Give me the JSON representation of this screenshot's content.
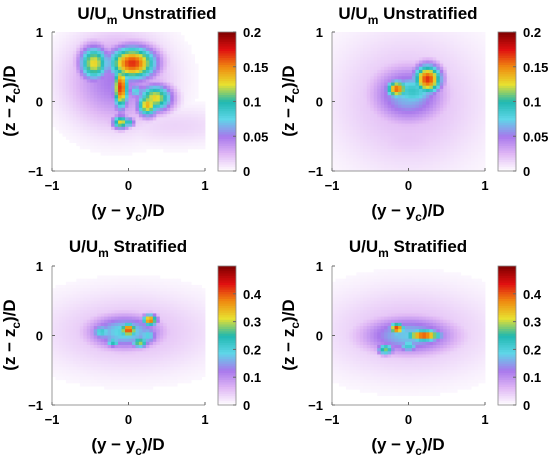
{
  "chart_data": [
    {
      "type": "heatmap",
      "title": "U/U_m Unstratified",
      "title_main": "U/U",
      "title_sub": "m",
      "title_rest": " Unstratified",
      "xlabel_parts": [
        "(y − y",
        "c",
        ")/D"
      ],
      "ylabel_parts": [
        "(z − z",
        "c",
        ")/D"
      ],
      "xlim": [
        -1,
        1
      ],
      "ylim": [
        -1,
        1
      ],
      "xticks": [
        "−1",
        "0",
        "1"
      ],
      "yticks": [
        "−1",
        "0",
        "1"
      ],
      "clim": [
        0,
        0.2
      ],
      "colorbar_ticks": [
        "0",
        "0.05",
        "0.1",
        "0.15",
        "0.2"
      ],
      "colorbar_values": [
        0,
        0.05,
        0.1,
        0.15,
        0.2
      ],
      "colormap": [
        "#ffffff",
        "#e0b8f5",
        "#a878ec",
        "#5fd6e8",
        "#20b8b0",
        "#e8e030",
        "#f08a10",
        "#e01010",
        "#800000"
      ],
      "blobs": [
        {
          "y": -0.15,
          "z": 0.3,
          "sy": 0.45,
          "sz": 0.45,
          "v": 0.05
        },
        {
          "y": 0.05,
          "z": 0.55,
          "sy": 0.22,
          "sz": 0.17,
          "v": 0.17
        },
        {
          "y": -0.1,
          "z": 0.2,
          "sy": 0.07,
          "sz": 0.22,
          "v": 0.17
        },
        {
          "y": -0.45,
          "z": 0.55,
          "sy": 0.14,
          "sz": 0.18,
          "v": 0.13
        },
        {
          "y": 0.35,
          "z": 0.05,
          "sy": 0.16,
          "sz": 0.14,
          "v": 0.13
        },
        {
          "y": 0.1,
          "z": 0.15,
          "sy": 0.08,
          "sz": 0.08,
          "v": 0.08
        },
        {
          "y": 0.25,
          "z": -0.05,
          "sy": 0.1,
          "sz": 0.12,
          "v": 0.14
        },
        {
          "y": -0.1,
          "z": -0.3,
          "sy": 0.08,
          "sz": 0.07,
          "v": 0.13
        },
        {
          "y": 0.0,
          "z": -0.3,
          "sy": 0.06,
          "sz": 0.05,
          "v": 0.1
        },
        {
          "y": 0.6,
          "z": -0.35,
          "sy": 0.6,
          "sz": 0.2,
          "v": 0.015
        }
      ]
    },
    {
      "type": "heatmap",
      "title": "U/U_m Unstratified",
      "title_main": "U/U",
      "title_sub": "m",
      "title_rest": " Unstratified",
      "xlabel_parts": [
        "(y − y",
        "c",
        ")/D"
      ],
      "ylabel_parts": [
        "(z − z",
        "c",
        ")/D"
      ],
      "xlim": [
        -1,
        1
      ],
      "ylim": [
        -1,
        1
      ],
      "xticks": [
        "−1",
        "0",
        "1"
      ],
      "yticks": [
        "−1",
        "0",
        "1"
      ],
      "clim": [
        0,
        0.2
      ],
      "colorbar_ticks": [
        "0",
        "0.05",
        "0.1",
        "0.15",
        "0.2"
      ],
      "colorbar_values": [
        0,
        0.05,
        0.1,
        0.15,
        0.2
      ],
      "colormap": [
        "#ffffff",
        "#e0b8f5",
        "#a878ec",
        "#5fd6e8",
        "#20b8b0",
        "#e8e030",
        "#f08a10",
        "#e01010",
        "#800000"
      ],
      "blobs": [
        {
          "y": 0.0,
          "z": 0.0,
          "sy": 0.7,
          "sz": 0.7,
          "v": 0.025
        },
        {
          "y": 0.0,
          "z": 0.1,
          "sy": 0.35,
          "sz": 0.3,
          "v": 0.07
        },
        {
          "y": 0.05,
          "z": 0.15,
          "sy": 0.25,
          "sz": 0.18,
          "v": 0.09
        },
        {
          "y": 0.25,
          "z": 0.32,
          "sy": 0.13,
          "sz": 0.15,
          "v": 0.17
        },
        {
          "y": -0.15,
          "z": 0.18,
          "sy": 0.1,
          "sz": 0.09,
          "v": 0.16
        },
        {
          "y": 0.0,
          "z": -0.5,
          "sy": 0.5,
          "sz": 0.3,
          "v": 0.02
        }
      ]
    },
    {
      "type": "heatmap",
      "title": "U/U_m Stratified",
      "title_main": "U/U",
      "title_sub": "m",
      "title_rest": " Stratified",
      "xlabel_parts": [
        "(y − y",
        "c",
        ")/D"
      ],
      "ylabel_parts": [
        "(z − z",
        "c",
        ")/D"
      ],
      "xlim": [
        -1,
        1
      ],
      "ylim": [
        -1,
        1
      ],
      "xticks": [
        "−1",
        "0",
        "1"
      ],
      "yticks": [
        "−1",
        "0",
        "1"
      ],
      "clim": [
        0,
        0.5
      ],
      "colorbar_ticks": [
        "0",
        "0.1",
        "0.2",
        "0.3",
        "0.4"
      ],
      "colorbar_values": [
        0,
        0.1,
        0.2,
        0.3,
        0.4
      ],
      "colormap": [
        "#ffffff",
        "#e0b8f5",
        "#a878ec",
        "#5fd6e8",
        "#20b8b0",
        "#e8e030",
        "#f08a10",
        "#e01010",
        "#800000"
      ],
      "blobs": [
        {
          "y": 0.0,
          "z": 0.05,
          "sy": 0.8,
          "sz": 0.4,
          "v": 0.06
        },
        {
          "y": -0.05,
          "z": 0.05,
          "sy": 0.35,
          "sz": 0.18,
          "v": 0.2
        },
        {
          "y": 0.0,
          "z": 0.08,
          "sy": 0.08,
          "sz": 0.07,
          "v": 0.42
        },
        {
          "y": -0.35,
          "z": 0.05,
          "sy": 0.1,
          "sz": 0.08,
          "v": 0.22
        },
        {
          "y": 0.28,
          "z": 0.22,
          "sy": 0.07,
          "sz": 0.06,
          "v": 0.4
        },
        {
          "y": 0.25,
          "z": 0.0,
          "sy": 0.1,
          "sz": 0.1,
          "v": 0.2
        },
        {
          "y": 0.15,
          "z": -0.1,
          "sy": 0.08,
          "sz": 0.06,
          "v": 0.3
        },
        {
          "y": -0.2,
          "z": -0.1,
          "sy": 0.07,
          "sz": 0.05,
          "v": 0.25
        }
      ]
    },
    {
      "type": "heatmap",
      "title": "U/U_m Stratified",
      "title_main": "U/U",
      "title_sub": "m",
      "title_rest": " Stratified",
      "xlabel_parts": [
        "(y − y",
        "c",
        ")/D"
      ],
      "ylabel_parts": [
        "(z − z",
        "c",
        ")/D"
      ],
      "xlim": [
        -1,
        1
      ],
      "ylim": [
        -1,
        1
      ],
      "xticks": [
        "−1",
        "0",
        "1"
      ],
      "yticks": [
        "−1",
        "0",
        "1"
      ],
      "clim": [
        0,
        0.5
      ],
      "colorbar_ticks": [
        "0",
        "0.1",
        "0.2",
        "0.3",
        "0.4"
      ],
      "colorbar_values": [
        0,
        0.1,
        0.2,
        0.3,
        0.4
      ],
      "colormap": [
        "#ffffff",
        "#e0b8f5",
        "#a878ec",
        "#5fd6e8",
        "#20b8b0",
        "#e8e030",
        "#f08a10",
        "#e01010",
        "#800000"
      ],
      "blobs": [
        {
          "y": 0.0,
          "z": 0.05,
          "sy": 0.8,
          "sz": 0.45,
          "v": 0.06
        },
        {
          "y": 0.0,
          "z": 0.0,
          "sy": 0.45,
          "sz": 0.2,
          "v": 0.18
        },
        {
          "y": -0.15,
          "z": 0.1,
          "sy": 0.07,
          "sz": 0.06,
          "v": 0.42
        },
        {
          "y": 0.2,
          "z": 0.0,
          "sy": 0.17,
          "sz": 0.06,
          "v": 0.42
        },
        {
          "y": -0.3,
          "z": -0.2,
          "sy": 0.08,
          "sz": 0.06,
          "v": 0.28
        },
        {
          "y": 0.0,
          "z": -0.15,
          "sy": 0.1,
          "sz": 0.07,
          "v": 0.22
        }
      ]
    }
  ]
}
